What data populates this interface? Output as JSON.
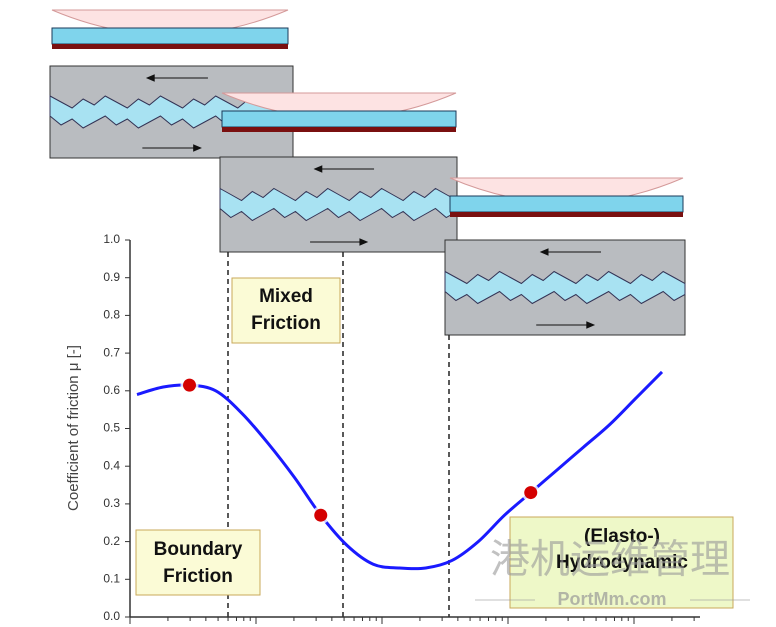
{
  "chart_data": {
    "type": "line",
    "y_label": "Coefficient of friction μ [-]",
    "categories": [
      null,
      null,
      null,
      null,
      null,
      null,
      null,
      null,
      null,
      null,
      null,
      null,
      null,
      null,
      null,
      null,
      null,
      null,
      null,
      null,
      null
    ],
    "series": [
      {
        "color": "#1a1aff",
        "values": [
          0.59,
          0.61,
          0.615,
          0.6,
          0.54,
          0.46,
          0.37,
          0.27,
          0.19,
          0.14,
          0.13,
          0.13,
          0.15,
          0.2,
          0.27,
          0.33,
          0.39,
          0.45,
          0.51,
          0.58,
          0.65
        ]
      }
    ],
    "points": {
      "color": "#d40000",
      "values": [
        null,
        null,
        0.615,
        null,
        null,
        null,
        null,
        0.27,
        null,
        null,
        null,
        null,
        null,
        null,
        null,
        0.33,
        null,
        null,
        null,
        null,
        null
      ]
    },
    "ylim": [
      0,
      1
    ],
    "yticks": [
      {
        "value": 0,
        "label": "0.0"
      },
      0.1,
      0.2,
      0.3,
      0.4,
      0.5,
      0.6,
      0.7,
      0.8,
      0.9,
      {
        "value": 1,
        "label": "1.0"
      }
    ],
    "regions": [
      "Boundary Friction",
      "Mixed Friction",
      "(Elasto-) Hydrodynamic"
    ]
  },
  "watermark": {
    "text": "港机运维管理",
    "site": "PortMm.com"
  }
}
